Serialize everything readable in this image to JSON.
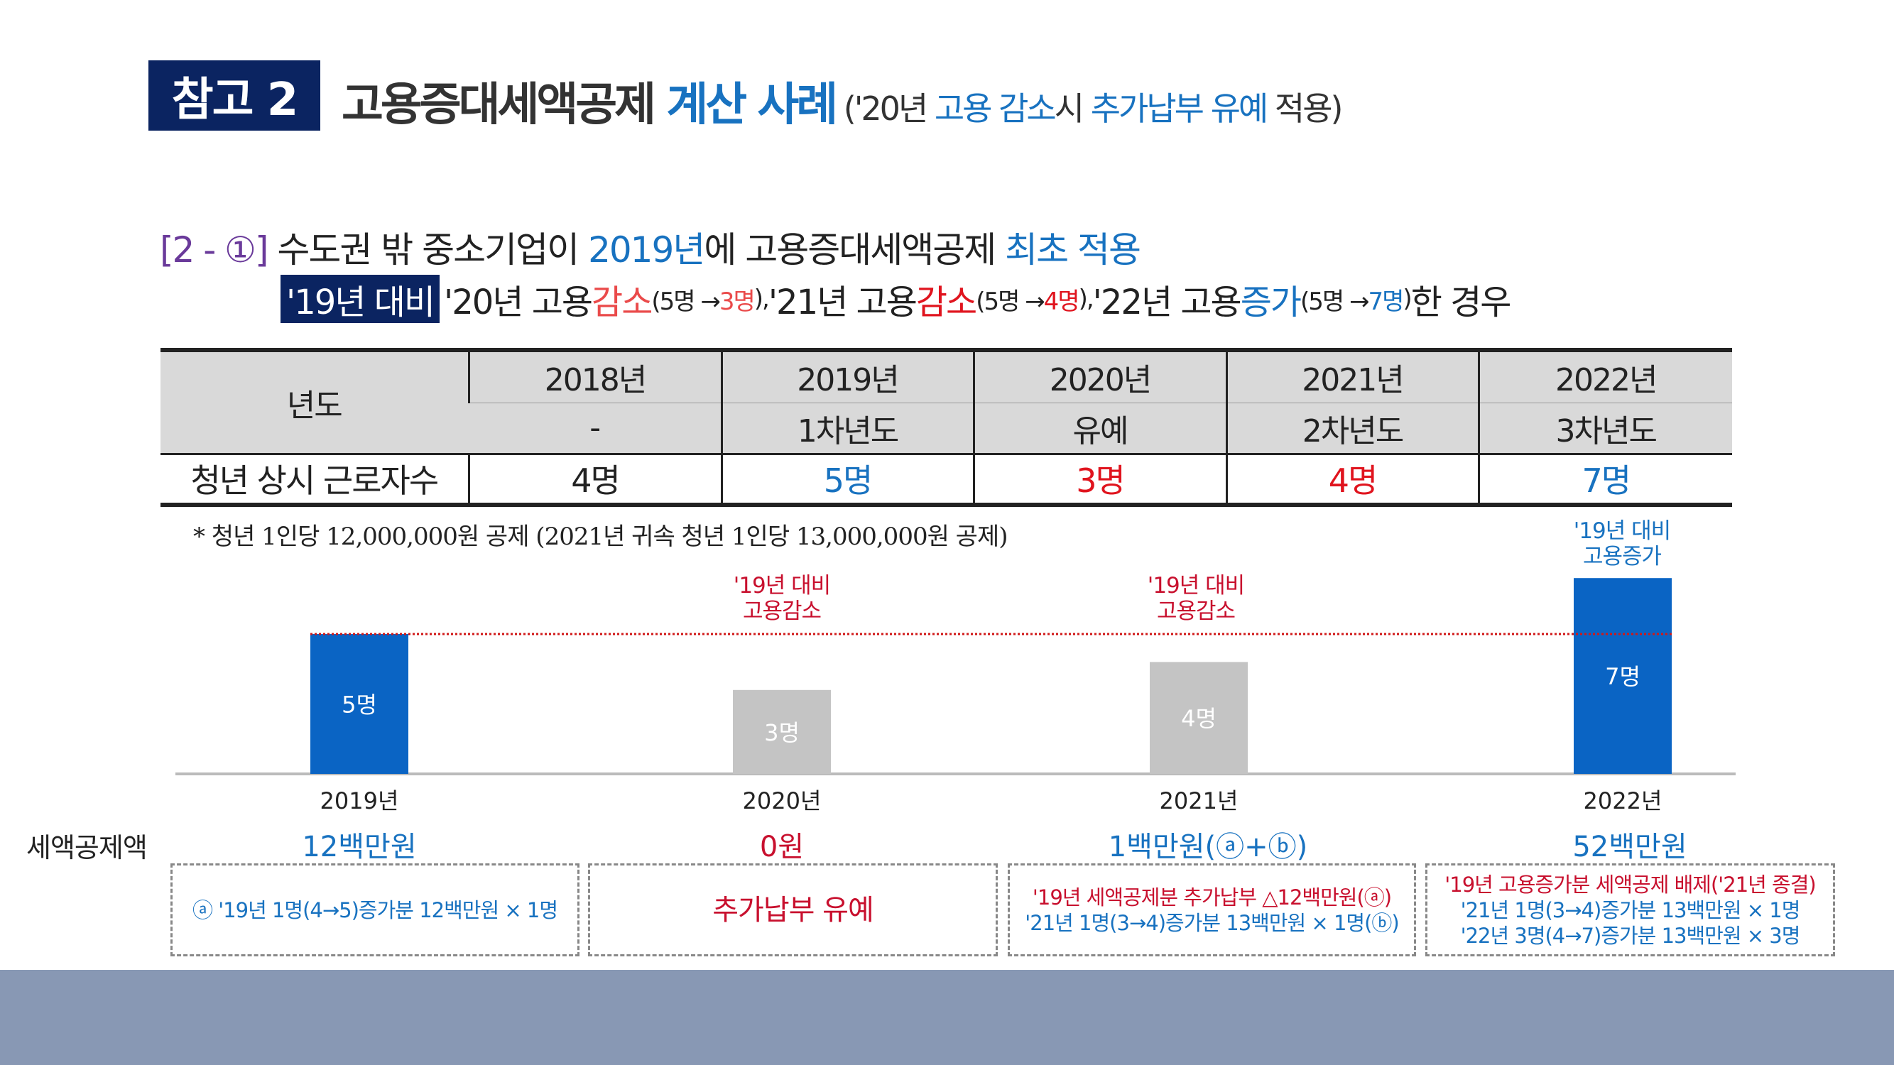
{
  "header": {
    "badge": "참고 2",
    "title_main": "고용증대세액공제 ",
    "title_accent": "계산 사례",
    "sub_open": " ('20년 ",
    "sub_b1": "고용 감소",
    "sub_m1": "시 ",
    "sub_b2": "추가납부 유예",
    "sub_close": " 적용)"
  },
  "case": {
    "label": "[2 - ①]",
    "t1": " 수도권 밖 중소기업이 ",
    "t2": "2019년",
    "t3": "에 고용증대세액공제 ",
    "t4": "최초 적용",
    "tag": "'19년 대비",
    "p1": "'20년 고용 ",
    "p1b": "감소",
    "p1s_a": "(5명 → ",
    "p1s_b": "3명",
    "p1s_c": "), ",
    "p2": "'21년 고용 ",
    "p2b": "감소",
    "p2s_a": "(5명 → ",
    "p2s_b": "4명",
    "p2s_c": "), ",
    "p3": "'22년 고용 ",
    "p3b": "증가",
    "p3s_a": "(5명 → ",
    "p3s_b": "7명",
    "p3s_c": ")",
    "p4": "한 경우"
  },
  "table": {
    "row_header": "년도",
    "years": [
      "2018년",
      "2019년",
      "2020년",
      "2021년",
      "2022년"
    ],
    "phases": [
      "-",
      "1차년도",
      "유예",
      "2차년도",
      "3차년도"
    ],
    "count_label": "청년 상시 근로자수",
    "counts": [
      "4명",
      "5명",
      "3명",
      "4명",
      "7명"
    ]
  },
  "note": "* 청년 1인당 12,000,000원 공제 (2021년 귀속 청년 1인당 13,000,000원 공제)",
  "colors": {
    "navy": "#0b2461",
    "blue": "#1872c0",
    "red": "#e0141e",
    "bar_blue": "#0a64c4",
    "bar_grey": "#c4c4c4"
  },
  "chart_data": {
    "type": "bar",
    "categories": [
      "2019년",
      "2020년",
      "2021년",
      "2022년"
    ],
    "values": [
      5,
      3,
      4,
      7
    ],
    "data_labels": [
      "5명",
      "3명",
      "4명",
      "7명"
    ],
    "reference_line": 5,
    "annotations": [
      {
        "year": "2020년",
        "l1": "'19년 대비",
        "l2": "고용감소"
      },
      {
        "year": "2021년",
        "l1": "'19년 대비",
        "l2": "고용감소"
      },
      {
        "year": "2022년",
        "l1": "'19년 대비",
        "l2": "고용증가"
      }
    ]
  },
  "credit": {
    "label": "세액공제액",
    "amounts": [
      "12백만원",
      "0원",
      "1백만원(ⓐ+ⓑ)",
      "52백만원"
    ],
    "boxes": [
      [
        "ⓐ '19년 1명(4→5)증가분 12백만원 × 1명"
      ],
      [
        "추가납부 유예"
      ],
      [
        "'19년 세액공제분 추가납부 △12백만원(ⓐ)",
        "'21년 1명(3→4)증가분 13백만원 × 1명(ⓑ)"
      ],
      [
        "'19년 고용증가분 세액공제 배제('21년 종결)",
        "'21년 1명(3→4)증가분 13백만원 × 1명",
        "'22년 3명(4→7)증가분 13백만원 × 3명"
      ]
    ]
  }
}
